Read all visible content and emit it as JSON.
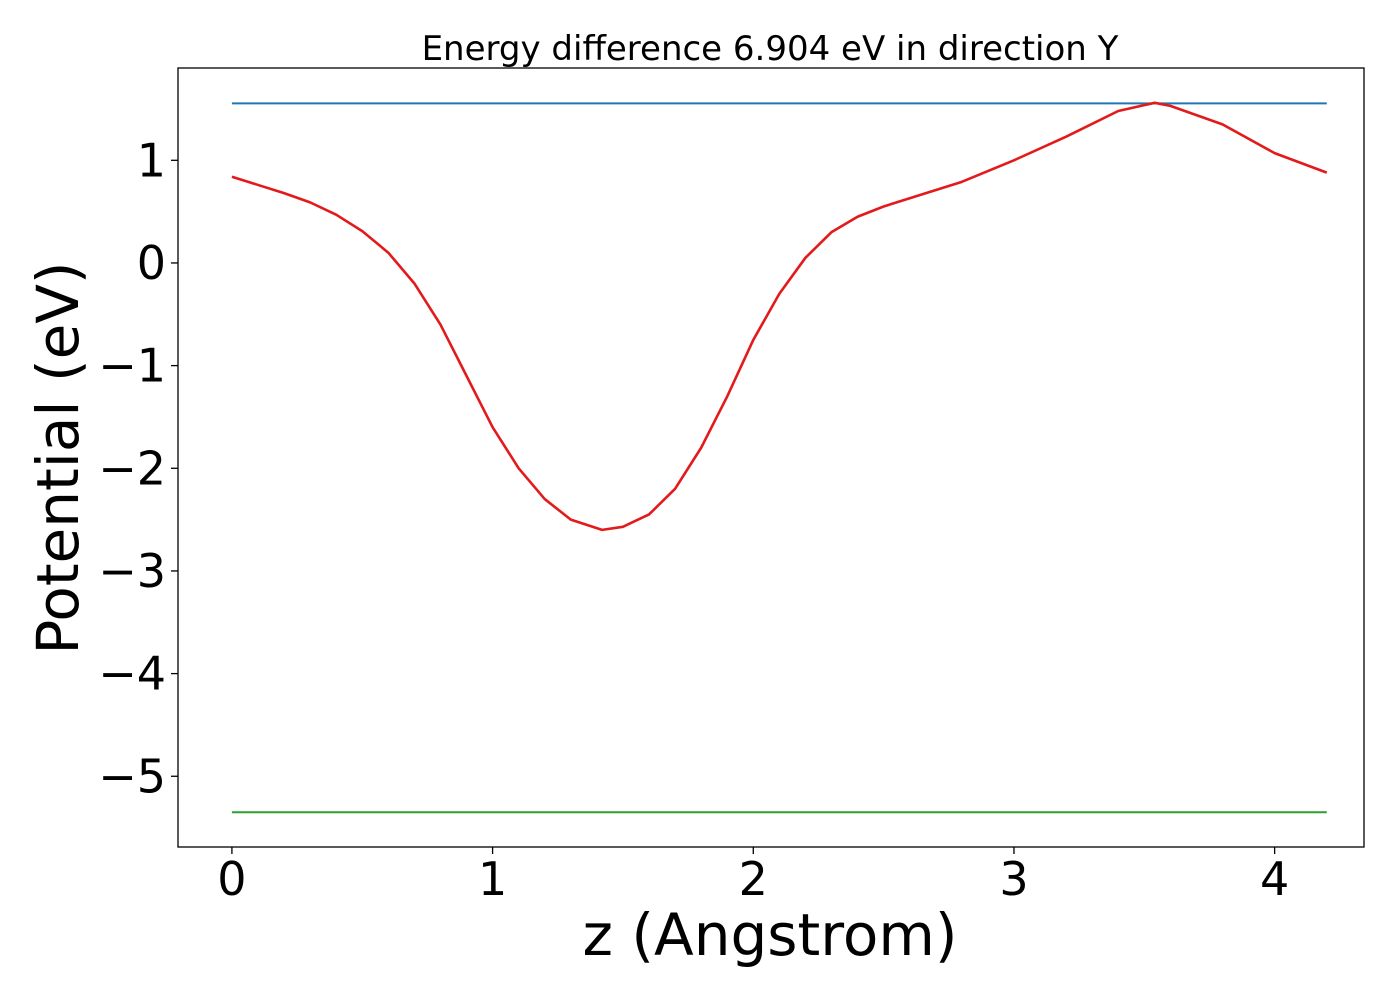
{
  "chart_data": {
    "type": "line",
    "title": "Energy difference 6.904 eV in direction Y",
    "xlabel": "z (Angstrom)",
    "ylabel": "Potential (eV)",
    "xlim": [
      -0.2068,
      4.3428
    ],
    "ylim": [
      -5.689,
      1.899
    ],
    "grid": false,
    "x_ticks": [
      {
        "value": 0,
        "label": "0"
      },
      {
        "value": 1,
        "label": "1"
      },
      {
        "value": 2,
        "label": "2"
      },
      {
        "value": 3,
        "label": "3"
      },
      {
        "value": 4,
        "label": "4"
      }
    ],
    "y_ticks": [
      {
        "value": 1,
        "label": "1"
      },
      {
        "value": 0,
        "label": "0"
      },
      {
        "value": -1,
        "label": "−1"
      },
      {
        "value": -2,
        "label": "−2"
      },
      {
        "value": -3,
        "label": "−3"
      },
      {
        "value": -4,
        "label": "−4"
      },
      {
        "value": -5,
        "label": "−5"
      }
    ],
    "series": [
      {
        "color": "#1f77b4",
        "x": [
          0,
          4.2
        ],
        "y": [
          1.554,
          1.554
        ]
      },
      {
        "color": "#2ca02c",
        "x": [
          0,
          4.2
        ],
        "y": [
          -5.35,
          -5.35
        ]
      },
      {
        "color": "#e31a1c",
        "x": [
          0,
          0.1,
          0.2,
          0.3,
          0.4,
          0.5,
          0.6,
          0.7,
          0.8,
          0.9,
          1.0,
          1.1,
          1.2,
          1.3,
          1.42,
          1.5,
          1.6,
          1.7,
          1.8,
          1.9,
          2.0,
          2.1,
          2.2,
          2.3,
          2.4,
          2.5,
          2.6,
          2.8,
          3.0,
          3.2,
          3.4,
          3.54,
          3.6,
          3.8,
          4.0,
          4.2
        ],
        "y": [
          0.84,
          0.76,
          0.68,
          0.59,
          0.47,
          0.31,
          0.1,
          -0.2,
          -0.6,
          -1.1,
          -1.6,
          -2.0,
          -2.3,
          -2.5,
          -2.6,
          -2.57,
          -2.45,
          -2.2,
          -1.8,
          -1.3,
          -0.75,
          -0.3,
          0.05,
          0.3,
          0.45,
          0.55,
          0.63,
          0.79,
          1.0,
          1.23,
          1.48,
          1.56,
          1.53,
          1.35,
          1.07,
          0.88
        ]
      }
    ]
  }
}
